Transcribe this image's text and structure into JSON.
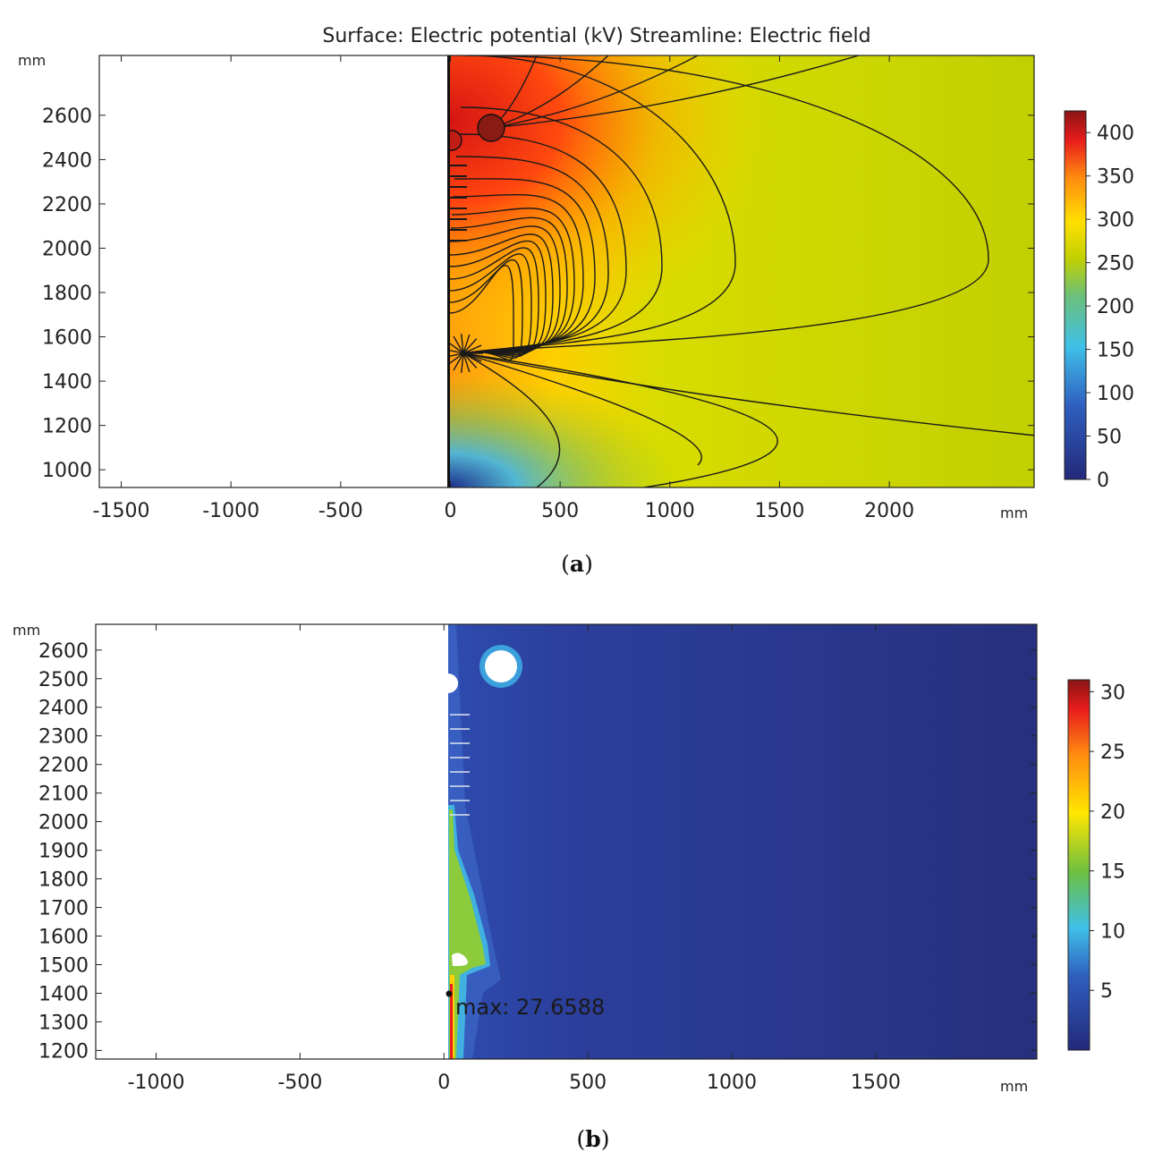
{
  "panel_a": {
    "title": "Surface: Electric potential (kV)  Streamline: Electric field",
    "caption_open": "(",
    "caption_letter": "a",
    "caption_close": ")",
    "axis_unit_x": "mm",
    "axis_unit_y": "mm"
  },
  "panel_b": {
    "caption_open": "(",
    "caption_letter": "b",
    "caption_close": ")",
    "axis_unit_x": "mm",
    "axis_unit_y": "mm",
    "max_label": "max: 27.6588"
  },
  "colors": {
    "dark_blue": "#26307e",
    "blue": "#2e4aa8",
    "cyan": "#3fc0e8",
    "green": "#7bbf3a",
    "yellow_green": "#c8d400",
    "yellow": "#ffe600",
    "orange": "#ff9a10",
    "red": "#e81c1c",
    "dark_red": "#8a1414"
  },
  "chart_data": [
    {
      "type": "heatmap",
      "title": "Surface: Electric potential (kV)  Streamline: Electric field",
      "quantity": "Electric potential (kV)",
      "xlabel": "mm",
      "ylabel": "mm",
      "xlim": [
        -1600,
        2660
      ],
      "ylim": [
        920,
        2870
      ],
      "xticks": [
        -1500,
        -1000,
        -500,
        0,
        500,
        1000,
        1500,
        2000
      ],
      "yticks": [
        1000,
        1200,
        1400,
        1600,
        1800,
        2000,
        2200,
        2400,
        2600
      ],
      "colorbar": {
        "min": 0,
        "max": 425,
        "ticks": [
          0,
          50,
          100,
          150,
          200,
          250,
          300,
          350,
          400
        ]
      },
      "streamlines": true,
      "electrodes": [
        {
          "x": 200,
          "y": 2530,
          "r": 60
        },
        {
          "x": 0,
          "y": 2480,
          "r": 45
        }
      ]
    },
    {
      "type": "heatmap",
      "quantity": "Electric field",
      "xlabel": "mm",
      "ylabel": "mm",
      "xlim": [
        -1210,
        2060
      ],
      "ylim": [
        1170,
        2690
      ],
      "xticks": [
        -1000,
        -500,
        0,
        500,
        1000,
        1500
      ],
      "yticks": [
        1200,
        1300,
        1400,
        1500,
        1600,
        1700,
        1800,
        1900,
        2000,
        2100,
        2200,
        2300,
        2400,
        2500,
        2600
      ],
      "colorbar": {
        "min": 0,
        "max": 31,
        "ticks": [
          5,
          10,
          15,
          20,
          25,
          30
        ]
      },
      "max_point": {
        "x": 20,
        "y": 1400,
        "value": 27.6588
      }
    }
  ]
}
